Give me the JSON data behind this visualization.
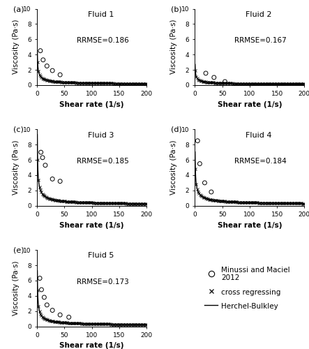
{
  "fluids": [
    {
      "label": "Fluid 1",
      "panel": "a",
      "rrmse": "RRMSE=0.186",
      "scatter_x": [
        6,
        11,
        18,
        28,
        42
      ],
      "scatter_y": [
        4.5,
        3.3,
        2.5,
        1.9,
        1.35
      ],
      "hb_params": [
        0.25,
        2.8,
        0.48
      ],
      "cross_start": 1,
      "cross_end": 200,
      "cross_n": 120
    },
    {
      "label": "Fluid 2",
      "panel": "b",
      "rrmse": "RRMSE=0.167",
      "scatter_x": [
        20,
        35,
        55
      ],
      "scatter_y": [
        1.55,
        1.0,
        0.45
      ],
      "hb_params": [
        0.08,
        1.8,
        0.5
      ],
      "cross_start": 1,
      "cross_end": 200,
      "cross_n": 120
    },
    {
      "label": "Fluid 3",
      "panel": "c",
      "rrmse": "RRMSE=0.185",
      "scatter_x": [
        7,
        10,
        15,
        28,
        42
      ],
      "scatter_y": [
        7.0,
        6.3,
        5.3,
        3.5,
        3.2
      ],
      "hb_params": [
        0.55,
        5.5,
        0.42
      ],
      "cross_start": 1,
      "cross_end": 200,
      "cross_n": 120
    },
    {
      "label": "Fluid 4",
      "panel": "d",
      "rrmse": "RRMSE=0.184",
      "scatter_x": [
        5,
        9,
        18,
        30
      ],
      "scatter_y": [
        8.5,
        5.5,
        3.0,
        1.8
      ],
      "hb_params": [
        0.3,
        4.5,
        0.48
      ],
      "cross_start": 1,
      "cross_end": 200,
      "cross_n": 120
    },
    {
      "label": "Fluid 5",
      "panel": "e",
      "rrmse": "RRMSE=0.173",
      "scatter_x": [
        5,
        8,
        13,
        18,
        28,
        42,
        58
      ],
      "scatter_y": [
        6.3,
        4.8,
        3.8,
        2.8,
        2.1,
        1.5,
        1.2
      ],
      "hb_params": [
        0.55,
        4.2,
        0.44
      ],
      "cross_start": 1,
      "cross_end": 200,
      "cross_n": 120
    }
  ],
  "xlim": [
    0,
    200
  ],
  "ylim": [
    0,
    10
  ],
  "yticks": [
    0,
    2,
    4,
    6,
    8,
    10
  ],
  "xticks": [
    0,
    50,
    100,
    150,
    200
  ],
  "xlabel": "Shear rate (1/s)",
  "ylabel": "Viscosity (Pa·s)",
  "rrmse_fontsize": 7.5,
  "label_fontsize": 8,
  "title_fontsize": 8,
  "axis_label_fontsize": 7.5,
  "tick_fontsize": 6.5
}
